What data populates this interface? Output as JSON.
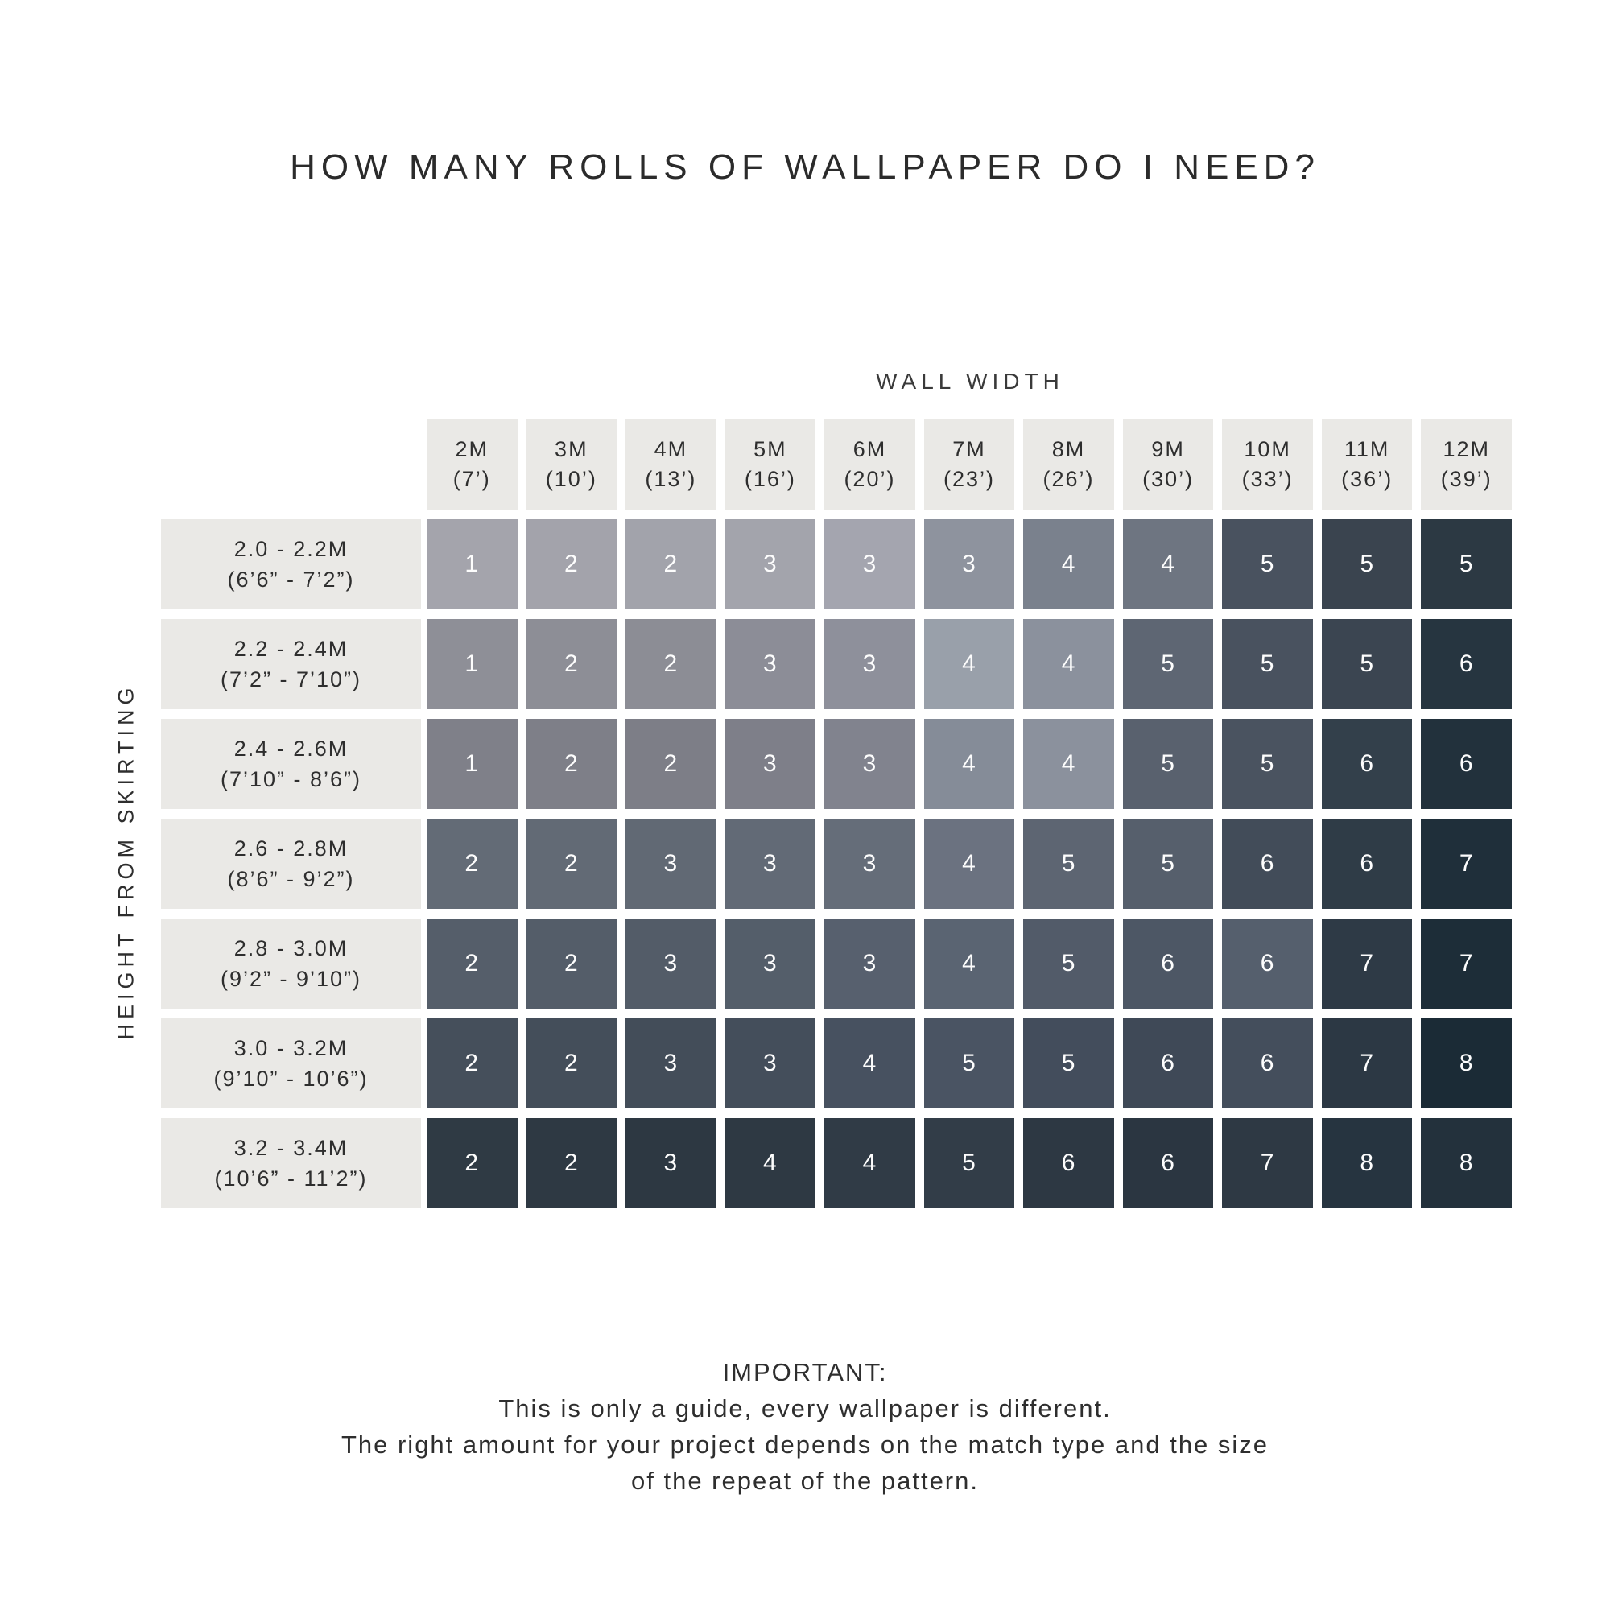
{
  "chart_data": {
    "type": "heatmap",
    "title": "HOW MANY ROLLS OF WALLPAPER DO I NEED?",
    "x_axis_label": "WALL WIDTH",
    "y_axis_label": "HEIGHT FROM SKIRTING",
    "legend_position": "none",
    "grid": false,
    "columns": [
      {
        "meters": "2M",
        "feet": "(7’)"
      },
      {
        "meters": "3M",
        "feet": "(10’)"
      },
      {
        "meters": "4M",
        "feet": "(13’)"
      },
      {
        "meters": "5M",
        "feet": "(16’)"
      },
      {
        "meters": "6M",
        "feet": "(20’)"
      },
      {
        "meters": "7M",
        "feet": "(23’)"
      },
      {
        "meters": "8M",
        "feet": "(26’)"
      },
      {
        "meters": "9M",
        "feet": "(30’)"
      },
      {
        "meters": "10M",
        "feet": "(33’)"
      },
      {
        "meters": "11M",
        "feet": "(36’)"
      },
      {
        "meters": "12M",
        "feet": "(39’)"
      }
    ],
    "rows": [
      {
        "meters": "2.0 - 2.2M",
        "feet": "(6’6” - 7’2”)"
      },
      {
        "meters": "2.2 - 2.4M",
        "feet": "(7’2” - 7’10”)"
      },
      {
        "meters": "2.4 - 2.6M",
        "feet": "(7’10” - 8’6”)"
      },
      {
        "meters": "2.6 - 2.8M",
        "feet": "(8’6” - 9’2”)"
      },
      {
        "meters": "2.8 - 3.0M",
        "feet": "(9’2” - 9’10”)"
      },
      {
        "meters": "3.0 - 3.2M",
        "feet": "(9’10” - 10’6”)"
      },
      {
        "meters": "3.2 - 3.4M",
        "feet": "(10’6” - 11’2”)"
      }
    ],
    "values": [
      [
        1,
        2,
        2,
        3,
        3,
        3,
        4,
        4,
        5,
        5,
        5
      ],
      [
        1,
        2,
        2,
        3,
        3,
        4,
        4,
        5,
        5,
        5,
        6
      ],
      [
        1,
        2,
        2,
        3,
        3,
        4,
        4,
        5,
        5,
        6,
        6
      ],
      [
        2,
        2,
        3,
        3,
        3,
        4,
        5,
        5,
        6,
        6,
        7
      ],
      [
        2,
        2,
        3,
        3,
        3,
        4,
        5,
        6,
        6,
        7,
        7
      ],
      [
        2,
        2,
        3,
        3,
        4,
        5,
        5,
        6,
        6,
        7,
        8
      ],
      [
        2,
        2,
        3,
        4,
        4,
        5,
        6,
        6,
        7,
        8,
        8
      ]
    ],
    "cell_colors": [
      [
        "#a4a4ac",
        "#a3a3ab",
        "#a2a3ab",
        "#a3a4ac",
        "#a4a5af",
        "#8e939e",
        "#7a818d",
        "#6e7581",
        "#49525f",
        "#3a444f",
        "#2c3943"
      ],
      [
        "#8e8f97",
        "#8d8e96",
        "#8c8d95",
        "#8c8d97",
        "#8e909b",
        "#99a0aa",
        "#8b919d",
        "#5e6673",
        "#49525f",
        "#3b4551",
        "#263540"
      ],
      [
        "#7f8089",
        "#7e7f88",
        "#7d7e87",
        "#7e7f89",
        "#81838e",
        "#858c98",
        "#8b919d",
        "#59616e",
        "#4a5360",
        "#33404b",
        "#22313c"
      ],
      [
        "#636b76",
        "#626a75",
        "#616974",
        "#626a76",
        "#656d79",
        "#6b7280",
        "#5d6572",
        "#565f6c",
        "#424c59",
        "#2f3c47",
        "#1f2f3a"
      ],
      [
        "#555e6a",
        "#545d69",
        "#535c68",
        "#545e6a",
        "#57606e",
        "#5a6472",
        "#525b69",
        "#4d5765",
        "#555f6d",
        "#2e3a46",
        "#1d2d38"
      ],
      [
        "#454f5b",
        "#444e5a",
        "#434d59",
        "#444e5b",
        "#475160",
        "#4a5463",
        "#434d5c",
        "#3f4957",
        "#444e5c",
        "#2c3844",
        "#1b2b36"
      ],
      [
        "#2f3a44",
        "#2e3943",
        "#2d3842",
        "#2e3943",
        "#303b46",
        "#323d48",
        "#2d3843",
        "#2b3641",
        "#2e3944",
        "#263440",
        "#23313c"
      ]
    ],
    "header_bg_color": "#eae9e6",
    "cell_text_color": "#fdfdfd",
    "label_text_color": "#2e2e2e"
  },
  "footer": {
    "heading": "IMPORTANT:",
    "lines": [
      "This is only a guide, every wallpaper is different.",
      "The right amount for your project depends on the match type and the size",
      "of the repeat of the pattern."
    ]
  }
}
